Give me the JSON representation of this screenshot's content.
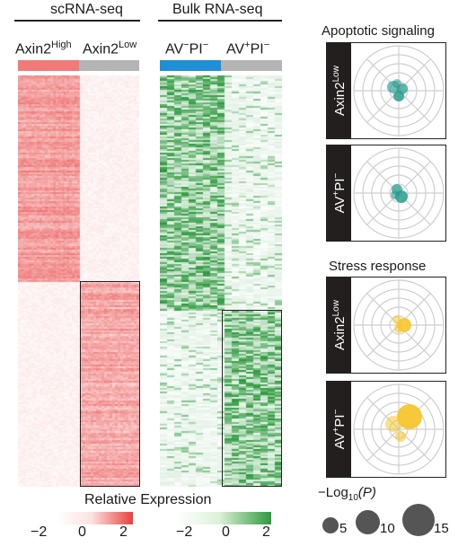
{
  "sc": {
    "title": "scRNA-seq",
    "label_high_base": "Axin2",
    "label_high_sup": "High",
    "label_low_base": "Axin2",
    "label_low_sup": "Low",
    "color_high": "#f07a78",
    "color_low": "#b4b4b4"
  },
  "bulk": {
    "title": "Bulk RNA-seq",
    "label_neg_a": "AV",
    "label_neg_b": "−",
    "label_neg_c": "PI",
    "label_neg_d": "−",
    "label_pos_a": "AV",
    "label_pos_b": "+",
    "label_pos_c": "PI",
    "label_pos_d": "−",
    "color_neg": "#1f8fd6",
    "color_pos": "#b4b4b4"
  },
  "legend": {
    "title": "Relative Expression",
    "sc_ticks": [
      "−2",
      "0",
      "2"
    ],
    "bulk_ticks": [
      "−2",
      "0",
      "2"
    ],
    "red": "#e8413f",
    "green": "#2e9a3e"
  },
  "right": {
    "apoptotic_title": "Apoptotic signaling",
    "stress_title": "Stress response",
    "row_axin2_base": "Axin2",
    "row_axin2_sup": "Low",
    "row_av_a": "AV",
    "row_av_b": "+",
    "row_av_c": "PI",
    "row_av_d": "−",
    "teal": "#2a9d8f",
    "yellow": "#f7c62f",
    "size_title_a": "−Log",
    "size_title_sub": "10",
    "size_title_b": "(P)",
    "size_values": [
      "5",
      "10",
      "15"
    ]
  }
}
